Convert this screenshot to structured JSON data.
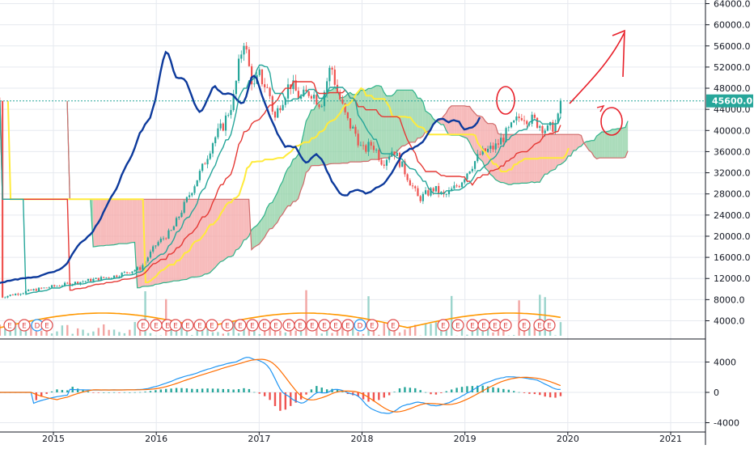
{
  "chart_data": [
    {
      "type": "candlestick",
      "ylim": [
        3000,
        65000
      ],
      "y_ticks": [
        "64000.0",
        "60000.0",
        "56000.0",
        "52000.0",
        "48000.0",
        "44000.0",
        "40000.0",
        "36000.0",
        "32000.0",
        "28000.0",
        "24000.0",
        "20000.0",
        "16000.0",
        "12000.0",
        "8000.0",
        "4000.0"
      ],
      "y_tick_values": [
        64000,
        60000,
        56000,
        52000,
        48000,
        44000,
        40000,
        36000,
        32000,
        28000,
        24000,
        20000,
        16000,
        12000,
        8000,
        4000
      ],
      "last_price_label": "45600.0",
      "last_price": 45600,
      "x_ticks": [
        "2015",
        "2016",
        "2017",
        "2018",
        "2019",
        "2020",
        "2021"
      ],
      "x_tick_years": [
        2015,
        2016,
        2017,
        2018,
        2019,
        2020,
        2021
      ],
      "earnings_label": "E",
      "earnings_dividend_label": "D",
      "colors": {
        "up": "#26a69a",
        "down": "#ef5350",
        "blue_line": "#0d3a9c",
        "yellow_line": "#ffeb3b",
        "red_line": "#e53935",
        "teal_line": "#26a69a",
        "cloud_green": "#8fd0a4",
        "cloud_red": "#f4a6a6",
        "annotation": "#e8202a",
        "price_tag_bg": "#26a69a"
      }
    },
    {
      "type": "macd",
      "ylim": [
        -4000,
        6000
      ],
      "y_ticks": [
        "4000",
        "0",
        "-4000"
      ],
      "y_tick_values": [
        4000,
        0,
        -4000
      ]
    }
  ]
}
